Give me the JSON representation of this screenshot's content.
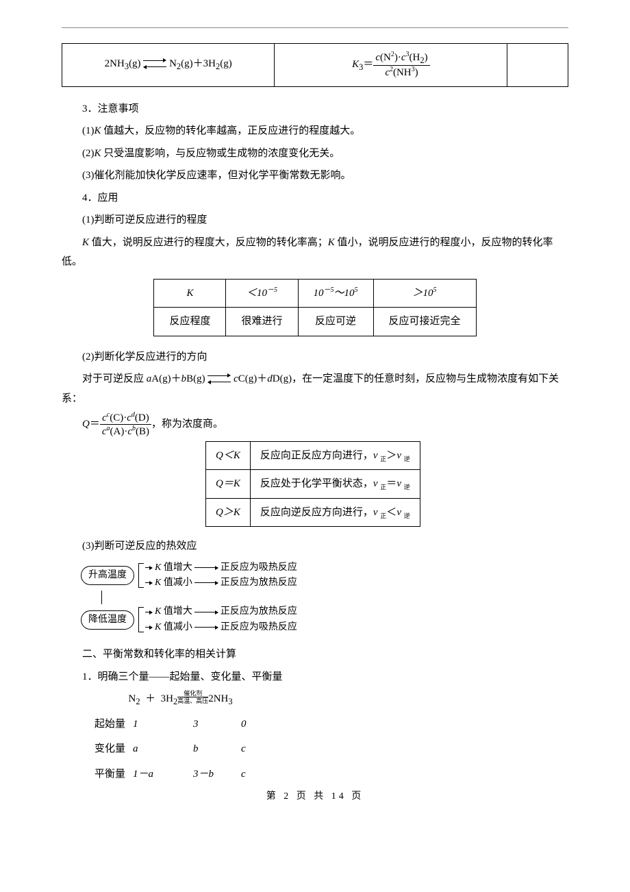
{
  "eq_table": {
    "lhs_html": "2NH<sub>3</sub>(g) <span class='arrow-eq'><span class='ah-r'></span><span class='ah-l'></span></span> N<sub>2</sub>(g)＋3H<sub>2</sub>(g)",
    "rhs_num_html": "<span class='italic'>c</span>(N<sup>2</sup>)·<span class='italic'>c</span><sup>3</sup>(H<sub>2</sub>)",
    "rhs_den_html": "<span class='italic'>c</span><sup>2</sup>(NH<sup>3</sup>)",
    "k_label_html": "<span class='italic'>K</span><sub>3</sub>＝"
  },
  "p3": "3．注意事项",
  "p3_1_html": "(1)<span class='italic'>K</span> 值越大，反应物的转化率越高，正反应进行的程度越大。",
  "p3_2_html": "(2)<span class='italic'>K</span> 只受温度影响，与反应物或生成物的浓度变化无关。",
  "p3_3": "(3)催化剂能加快化学反应速率，但对化学平衡常数无影响。",
  "p4": "4．应用",
  "p4_1": "(1)判断可逆反应进行的程度",
  "p4_1_body_html": "<span class='italic'>K</span> 值大，说明反应进行的程度大，反应物的转化率高；<span class='italic'>K</span> 值小，说明反应进行的程度小，反应物的转化率低。",
  "k_table": {
    "r1": [
      "K",
      "＜10<sup>－5</sup>",
      "10<sup>－5</sup>～10<sup>5</sup>",
      "＞10<sup>5</sup>"
    ],
    "r2": [
      "反应程度",
      "很难进行",
      "反应可逆",
      "反应可接近完全"
    ]
  },
  "p4_2": "(2)判断化学反应进行的方向",
  "p4_2_body_html": "对于可逆反应 <span class='italic'>a</span>A(g)＋<span class='italic'>b</span>B(g) <span class='arrow-eq'><span class='ah-r'></span><span class='ah-l'></span></span> <span class='italic'>c</span>C(g)＋<span class='italic'>d</span>D(g)，在一定温度下的任意时刻，反应物与生成物浓度有如下关系：",
  "q_expr": {
    "lead_html": "<span class='italic'>Q</span>＝",
    "num_html": "<span class='italic'>c</span><sup><span class='italic'>c</span></sup>(C)·<span class='italic'>c</span><sup><span class='italic'>d</span></sup>(D)",
    "den_html": "<span class='italic'>c</span><sup><span class='italic'>a</span></sup>(A)·<span class='italic'>c</span><sup><span class='italic'>b</span></sup>(B)",
    "tail": "，称为浓度商。"
  },
  "q_table": [
    {
      "l": "Q＜K",
      "r_html": "反应向正反应方向进行，<span class='italic'>v</span> <span class='tinysub'>正</span>＞<span class='italic'>v</span> <span class='tinysub'>逆</span>"
    },
    {
      "l": "Q＝K",
      "r_html": "反应处于化学平衡状态，<span class='italic'>v</span> <span class='tinysub'>正</span>＝<span class='italic'>v</span> <span class='tinysub'>逆</span>"
    },
    {
      "l": "Q＞K",
      "r_html": "反应向逆反应方向进行，<span class='italic'>v</span> <span class='tinysub'>正</span>＜<span class='italic'>v</span> <span class='tinysub'>逆</span>"
    }
  ],
  "p4_3": "(3)判断可逆反应的热效应",
  "flow": {
    "raise": "升高温度",
    "lower": "降低温度",
    "k_up_html": "<span class='italic'>K</span> 值增大",
    "k_dn_html": "<span class='italic'>K</span> 值减小",
    "endo": "正反应为吸热反应",
    "exo": "正反应为放热反应"
  },
  "sec2": "二、平衡常数和转化率的相关计算",
  "sec2_1": "1．明确三个量——起始量、变化量、平衡量",
  "rxn": {
    "header_html": "N<sub>2</sub>&nbsp;&nbsp;＋&nbsp;&nbsp;3H<sub>2</sub><span class='catalyst-stack'><span class='top'>催化剂</span><span class='bot'>高温、高压</span></span>2NH<sub>3</sub>",
    "rows": [
      {
        "label": "起始量",
        "c1": "1",
        "c2": "3",
        "c3": "0"
      },
      {
        "label": "变化量",
        "c1": "a",
        "c2": "b",
        "c3": "c"
      },
      {
        "label": "平衡量",
        "c1": "1－a",
        "c2": "3－b",
        "c3": "c"
      }
    ]
  },
  "footer": "第 2 页 共 14 页"
}
